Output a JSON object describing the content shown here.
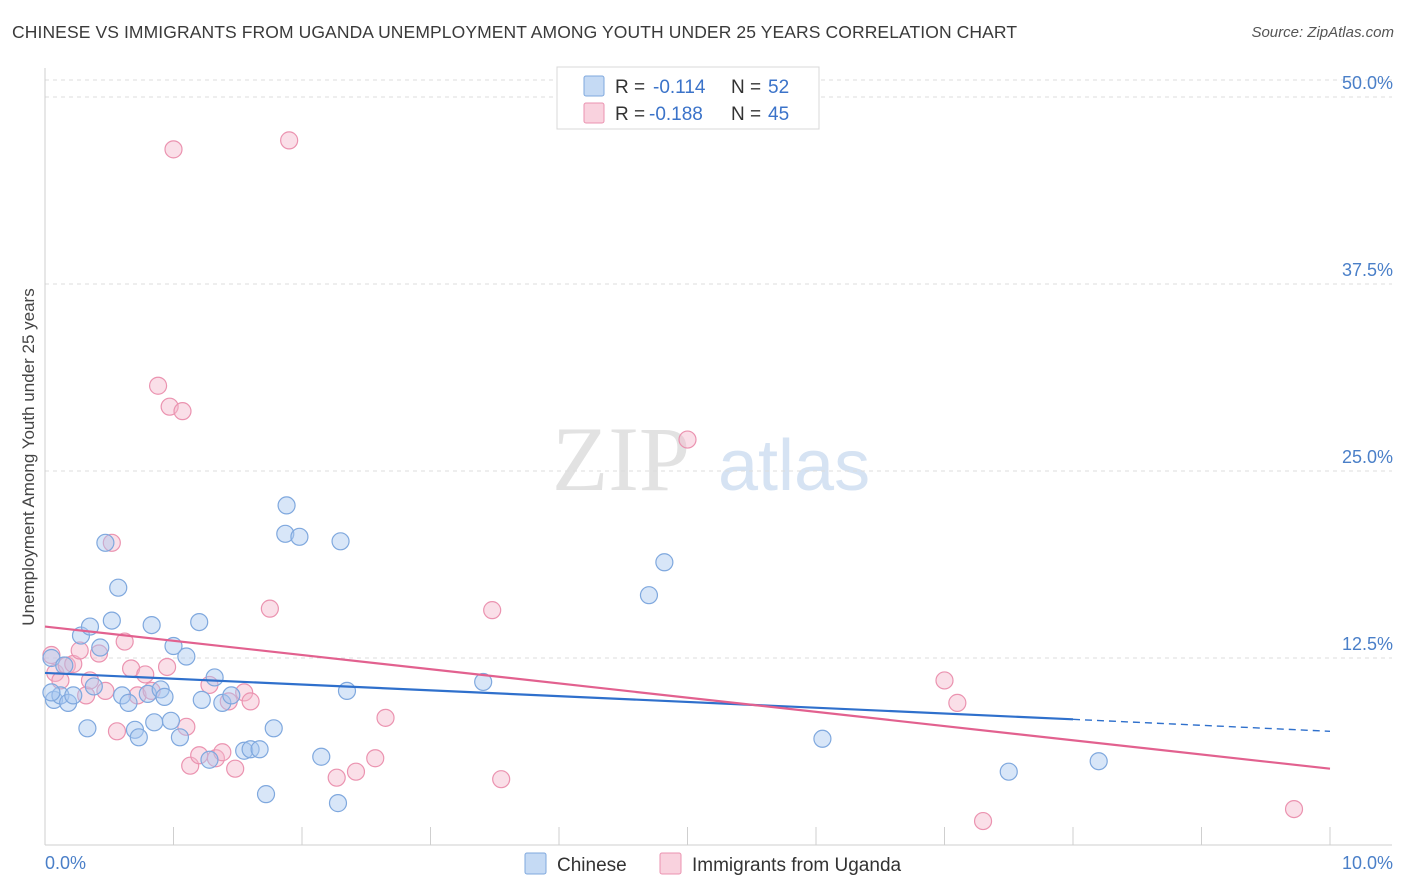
{
  "title": "CHINESE VS IMMIGRANTS FROM UGANDA UNEMPLOYMENT AMONG YOUTH UNDER 25 YEARS CORRELATION CHART",
  "source": "Source: ZipAtlas.com",
  "watermark": {
    "zip": "ZIP",
    "atlas": "atlas"
  },
  "legend": {
    "r_label": "R =",
    "n_label": "N =",
    "rows": [
      {
        "r": "-0.114",
        "n": "52"
      },
      {
        "r": "-0.188",
        "n": "45"
      }
    ]
  },
  "bottom_legend": [
    "Chinese",
    "Immigrants from Uganda"
  ],
  "colors": {
    "chinese_fill": "#a9c8ef",
    "chinese_stroke": "#7fa8de",
    "chinese_line": "#2f70cc",
    "uganda_fill": "#f5b8cb",
    "uganda_stroke": "#eb93b0",
    "uganda_line": "#e2618f",
    "tick_text": "#4a7fc8",
    "grid": "#dcdcdc"
  },
  "chart_data": {
    "type": "scatter",
    "title": "CHINESE VS IMMIGRANTS FROM UGANDA UNEMPLOYMENT AMONG YOUTH UNDER 25 YEARS CORRELATION CHART",
    "xlabel": "",
    "ylabel": "Unemployment Among Youth under 25 years",
    "xlim": [
      0,
      10
    ],
    "ylim": [
      0,
      50
    ],
    "x_tick_labels": [
      "0.0%",
      "10.0%"
    ],
    "y_ticks": [
      12.5,
      25.0,
      37.5,
      50.0
    ],
    "y_tick_labels": [
      "12.5%",
      "25.0%",
      "37.5%",
      "50.0%"
    ],
    "grid": true,
    "series": [
      {
        "name": "Chinese",
        "r": -0.114,
        "n": 52,
        "trend": {
          "x": [
            0,
            8.0
          ],
          "y": [
            11.5,
            8.4
          ],
          "dashed_to": [
            10.0,
            7.6
          ]
        },
        "points": [
          [
            0.05,
            12.5
          ],
          [
            0.07,
            9.7
          ],
          [
            0.12,
            10.0
          ],
          [
            0.15,
            12.0
          ],
          [
            0.18,
            9.5
          ],
          [
            0.22,
            10.0
          ],
          [
            0.28,
            14.0
          ],
          [
            0.33,
            7.8
          ],
          [
            0.35,
            14.6
          ],
          [
            0.38,
            10.6
          ],
          [
            0.43,
            13.2
          ],
          [
            0.47,
            20.2
          ],
          [
            0.52,
            15.0
          ],
          [
            0.57,
            17.2
          ],
          [
            0.6,
            10.0
          ],
          [
            0.65,
            9.5
          ],
          [
            0.7,
            7.7
          ],
          [
            0.73,
            7.2
          ],
          [
            0.8,
            10.1
          ],
          [
            0.83,
            14.7
          ],
          [
            0.85,
            8.2
          ],
          [
            0.9,
            10.4
          ],
          [
            0.93,
            9.9
          ],
          [
            0.98,
            8.3
          ],
          [
            1.0,
            13.3
          ],
          [
            1.05,
            7.2
          ],
          [
            1.1,
            12.6
          ],
          [
            1.2,
            14.9
          ],
          [
            1.22,
            9.7
          ],
          [
            1.28,
            5.7
          ],
          [
            1.32,
            11.2
          ],
          [
            1.38,
            9.5
          ],
          [
            1.45,
            10.0
          ],
          [
            1.55,
            6.3
          ],
          [
            1.6,
            6.4
          ],
          [
            1.67,
            6.4
          ],
          [
            1.72,
            3.4
          ],
          [
            1.78,
            7.8
          ],
          [
            1.87,
            20.8
          ],
          [
            1.88,
            22.7
          ],
          [
            1.98,
            20.6
          ],
          [
            2.15,
            5.9
          ],
          [
            2.3,
            20.3
          ],
          [
            2.28,
            2.8
          ],
          [
            2.35,
            10.3
          ],
          [
            3.41,
            10.9
          ],
          [
            4.7,
            16.7
          ],
          [
            4.82,
            18.9
          ],
          [
            6.05,
            7.1
          ],
          [
            7.5,
            4.9
          ],
          [
            8.2,
            5.6
          ],
          [
            0.05,
            10.2
          ]
        ]
      },
      {
        "name": "Immigrants from Uganda",
        "r": -0.188,
        "n": 45,
        "trend": {
          "x": [
            0,
            10.0
          ],
          "y": [
            14.6,
            5.1
          ]
        },
        "points": [
          [
            0.05,
            12.7
          ],
          [
            0.08,
            11.5
          ],
          [
            0.12,
            11.0
          ],
          [
            0.17,
            12.0
          ],
          [
            0.22,
            12.1
          ],
          [
            0.27,
            13.0
          ],
          [
            0.32,
            10.0
          ],
          [
            0.35,
            11.0
          ],
          [
            0.42,
            12.8
          ],
          [
            0.47,
            10.3
          ],
          [
            0.52,
            20.2
          ],
          [
            0.56,
            7.6
          ],
          [
            0.62,
            13.6
          ],
          [
            0.67,
            11.8
          ],
          [
            0.72,
            10.0
          ],
          [
            0.78,
            11.4
          ],
          [
            0.83,
            10.3
          ],
          [
            0.88,
            30.7
          ],
          [
            0.95,
            11.9
          ],
          [
            0.97,
            29.3
          ],
          [
            1.0,
            46.5
          ],
          [
            1.07,
            29.0
          ],
          [
            1.1,
            7.9
          ],
          [
            1.13,
            5.3
          ],
          [
            1.2,
            6.0
          ],
          [
            1.28,
            10.7
          ],
          [
            1.33,
            5.8
          ],
          [
            1.38,
            6.2
          ],
          [
            1.43,
            9.6
          ],
          [
            1.48,
            5.1
          ],
          [
            1.55,
            10.2
          ],
          [
            1.6,
            9.6
          ],
          [
            1.75,
            15.8
          ],
          [
            1.9,
            47.1
          ],
          [
            2.27,
            4.5
          ],
          [
            2.42,
            4.9
          ],
          [
            2.57,
            5.8
          ],
          [
            2.65,
            8.5
          ],
          [
            3.48,
            15.7
          ],
          [
            3.55,
            4.4
          ],
          [
            5.0,
            27.1
          ],
          [
            7.0,
            11.0
          ],
          [
            7.1,
            9.5
          ],
          [
            7.3,
            1.6
          ],
          [
            9.72,
            2.4
          ]
        ]
      }
    ]
  }
}
